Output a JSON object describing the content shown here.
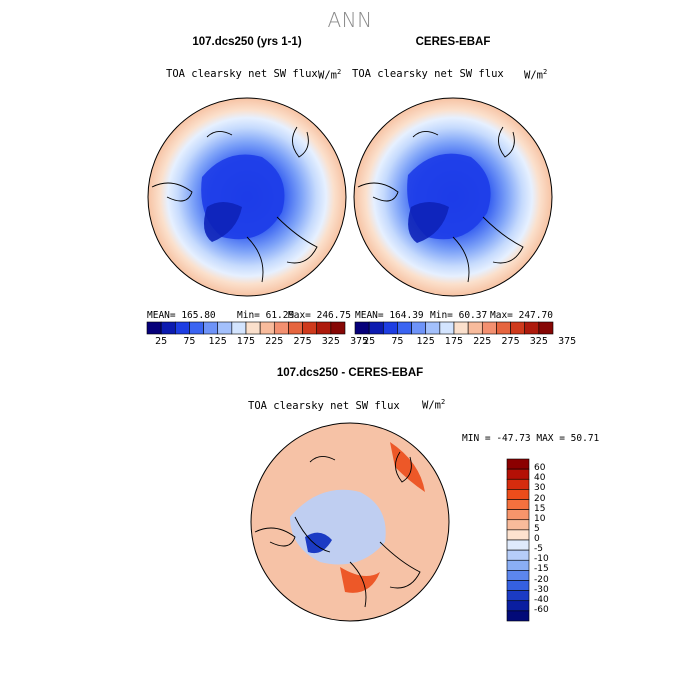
{
  "page": {
    "title": "ANN",
    "panels": [
      {
        "name": "model",
        "title": "107.dcs250 (yrs 1-1)",
        "variable": "TOA clearsky net SW flux",
        "units": "W/m",
        "units_exp": "2",
        "mean": "MEAN= 165.80",
        "min": "Min= 61.29",
        "max": "Max= 246.75"
      },
      {
        "name": "obs",
        "title": "CERES-EBAF",
        "variable": "TOA clearsky net SW flux",
        "units": "W/m",
        "units_exp": "2",
        "mean": "MEAN= 164.39",
        "min": "Min= 60.37",
        "max": "Max= 247.70"
      }
    ],
    "diff": {
      "title": "107.dcs250 - CERES-EBAF",
      "variable": "TOA clearsky net SW flux",
      "units": "W/m",
      "units_exp": "2",
      "minmax": "MIN = -47.73 MAX =  50.71"
    }
  },
  "chart_data": [
    {
      "type": "heatmap",
      "projection": "north polar stereographic",
      "title": "107.dcs250 (yrs 1-1)",
      "variable": "TOA clearsky net SW flux",
      "units": "W/m2",
      "stats": {
        "mean": 165.8,
        "min": 61.29,
        "max": 246.75
      },
      "colorbar": {
        "ticks": [
          "25",
          "75",
          "125",
          "175",
          "225",
          "275",
          "325",
          "375"
        ],
        "colors": [
          "#06007a",
          "#0c1bb0",
          "#1e3ee3",
          "#3a64f2",
          "#6e93f8",
          "#a3c0fc",
          "#d3e4fe",
          "#fbe0cc",
          "#f8bb9c",
          "#f39070",
          "#e6653f",
          "#cf3a1c",
          "#ae1a0c",
          "#860705"
        ]
      }
    },
    {
      "type": "heatmap",
      "projection": "north polar stereographic",
      "title": "CERES-EBAF",
      "variable": "TOA clearsky net SW flux",
      "units": "W/m2",
      "stats": {
        "mean": 164.39,
        "min": 60.37,
        "max": 247.7
      },
      "colorbar": {
        "ticks": [
          "25",
          "75",
          "125",
          "175",
          "225",
          "275",
          "325",
          "375"
        ],
        "colors": [
          "#06007a",
          "#0c1bb0",
          "#1e3ee3",
          "#3a64f2",
          "#6e93f8",
          "#a3c0fc",
          "#d3e4fe",
          "#fbe0cc",
          "#f8bb9c",
          "#f39070",
          "#e6653f",
          "#cf3a1c",
          "#ae1a0c",
          "#860705"
        ]
      }
    },
    {
      "type": "heatmap",
      "projection": "north polar stereographic",
      "title": "107.dcs250 - CERES-EBAF",
      "variable": "TOA clearsky net SW flux",
      "units": "W/m2",
      "stats": {
        "min": -47.73,
        "max": 50.71
      },
      "colorbar": {
        "ticks": [
          "60",
          "40",
          "30",
          "20",
          "15",
          "10",
          "5",
          "0",
          "-5",
          "-10",
          "-15",
          "-20",
          "-30",
          "-40",
          "-60"
        ],
        "colors": [
          "#8b0000",
          "#b41006",
          "#d52c0e",
          "#ec4d1b",
          "#f4713e",
          "#f7956b",
          "#f9bb9b",
          "#fde2cf",
          "#dfeafc",
          "#b6cdf9",
          "#8aaef5",
          "#5c86ee",
          "#3560e0",
          "#1b3bc4",
          "#0a1ea0",
          "#020a78"
        ]
      }
    }
  ]
}
